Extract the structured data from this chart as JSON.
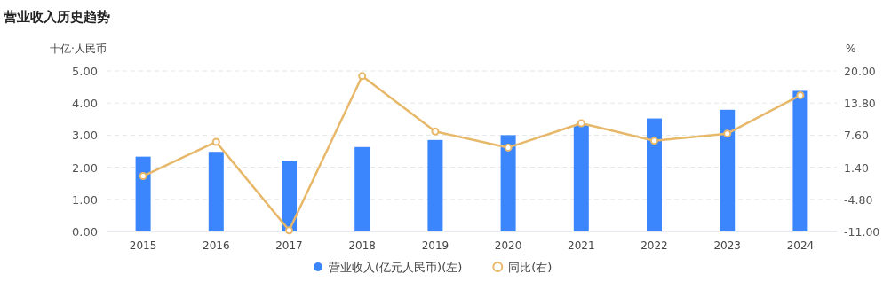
{
  "chart_data": {
    "type": "bar",
    "title": "营业收入历史趋势",
    "ylabel": "十亿·人民币",
    "y2label": "%",
    "categories": [
      "2015",
      "2016",
      "2017",
      "2018",
      "2019",
      "2020",
      "2021",
      "2022",
      "2023",
      "2024"
    ],
    "series": [
      {
        "name": "营业收入(亿元人民币)(左)",
        "color": "#3b86fc",
        "values": [
          2.33,
          2.48,
          2.21,
          2.63,
          2.85,
          3.0,
          3.31,
          3.52,
          3.79,
          4.38
        ]
      },
      {
        "name": "同比(右)",
        "type": "line",
        "axis": "y2",
        "color": "#e8b86a",
        "marker": "circle",
        "values": [
          -0.3,
          6.3,
          -10.8,
          19.0,
          8.3,
          5.2,
          9.9,
          6.5,
          7.9,
          15.3
        ]
      }
    ],
    "ylim": [
      0,
      5
    ],
    "yticks": [
      {
        "value": 0,
        "label": "0.00"
      },
      {
        "value": 1,
        "label": "1.00"
      },
      {
        "value": 2,
        "label": "2.00"
      },
      {
        "value": 3,
        "label": "3.00"
      },
      {
        "value": 4,
        "label": "4.00"
      },
      {
        "value": 5,
        "label": "5.00"
      }
    ],
    "y2lim": [
      -11,
      20
    ],
    "y2ticks": [
      {
        "value": -11,
        "label": "-11.00"
      },
      {
        "value": -4.8,
        "label": "-4.80"
      },
      {
        "value": 1.4,
        "label": "1.40"
      },
      {
        "value": 7.6,
        "label": "7.60"
      },
      {
        "value": 13.8,
        "label": "13.80"
      },
      {
        "value": 20,
        "label": "20.00"
      }
    ],
    "grid": "y",
    "legend": "bottom"
  }
}
